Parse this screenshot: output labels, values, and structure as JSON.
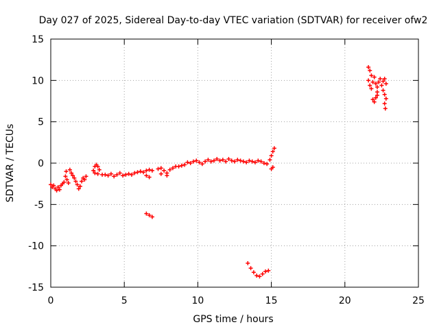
{
  "chart_data": {
    "type": "scatter",
    "title": "Day 027 of 2025, Sidereal Day-to-day VTEC variation (SDTVAR) for receiver ofw2",
    "xlabel": "GPS time / hours",
    "ylabel": "SDTVAR / TECUs",
    "xlim": [
      0,
      25
    ],
    "ylim": [
      -15,
      15
    ],
    "xticks": [
      0,
      5,
      10,
      15,
      20,
      25
    ],
    "yticks": [
      -15,
      -10,
      -5,
      0,
      5,
      10,
      15
    ],
    "grid": true,
    "marker": "+",
    "series": [
      {
        "name": "SDTVAR",
        "color": "#ff0000",
        "points": [
          [
            0.0,
            -2.6
          ],
          [
            0.1,
            -2.9
          ],
          [
            0.2,
            -2.7
          ],
          [
            0.3,
            -3.1
          ],
          [
            0.4,
            -3.3
          ],
          [
            0.5,
            -2.9
          ],
          [
            0.6,
            -3.2
          ],
          [
            0.7,
            -2.7
          ],
          [
            0.8,
            -2.5
          ],
          [
            0.9,
            -2.3
          ],
          [
            1.0,
            -1.6
          ],
          [
            1.05,
            -1.0
          ],
          [
            1.1,
            -2.0
          ],
          [
            1.2,
            -2.4
          ],
          [
            1.3,
            -0.8
          ],
          [
            1.4,
            -1.2
          ],
          [
            1.5,
            -1.5
          ],
          [
            1.6,
            -1.8
          ],
          [
            1.7,
            -2.2
          ],
          [
            1.8,
            -2.6
          ],
          [
            1.9,
            -3.1
          ],
          [
            2.0,
            -2.8
          ],
          [
            2.1,
            -2.2
          ],
          [
            2.2,
            -1.8
          ],
          [
            2.3,
            -2.0
          ],
          [
            2.4,
            -1.6
          ],
          [
            2.9,
            -0.9
          ],
          [
            3.0,
            -0.4
          ],
          [
            3.1,
            -0.2
          ],
          [
            3.2,
            -0.4
          ],
          [
            3.3,
            -0.8
          ],
          [
            3.0,
            -1.2
          ],
          [
            3.2,
            -1.3
          ],
          [
            3.5,
            -1.4
          ],
          [
            3.7,
            -1.4
          ],
          [
            3.9,
            -1.5
          ],
          [
            4.1,
            -1.3
          ],
          [
            4.3,
            -1.6
          ],
          [
            4.5,
            -1.4
          ],
          [
            4.7,
            -1.2
          ],
          [
            4.9,
            -1.5
          ],
          [
            5.1,
            -1.4
          ],
          [
            5.3,
            -1.3
          ],
          [
            5.5,
            -1.4
          ],
          [
            5.7,
            -1.2
          ],
          [
            5.9,
            -1.1
          ],
          [
            6.1,
            -1.0
          ],
          [
            6.3,
            -1.1
          ],
          [
            6.5,
            -0.9
          ],
          [
            6.7,
            -0.8
          ],
          [
            6.9,
            -0.9
          ],
          [
            6.5,
            -1.5
          ],
          [
            6.7,
            -1.7
          ],
          [
            7.3,
            -0.7
          ],
          [
            7.5,
            -0.6
          ],
          [
            7.7,
            -0.9
          ],
          [
            7.9,
            -1.2
          ],
          [
            8.1,
            -0.8
          ],
          [
            8.3,
            -0.6
          ],
          [
            8.5,
            -0.4
          ],
          [
            8.7,
            -0.4
          ],
          [
            8.9,
            -0.3
          ],
          [
            9.1,
            -0.2
          ],
          [
            7.5,
            -1.3
          ],
          [
            7.9,
            -1.5
          ],
          [
            9.3,
            0.1
          ],
          [
            9.5,
            0.0
          ],
          [
            9.7,
            0.2
          ],
          [
            9.9,
            0.3
          ],
          [
            10.1,
            0.1
          ],
          [
            10.3,
            -0.1
          ],
          [
            10.5,
            0.2
          ],
          [
            10.7,
            0.4
          ],
          [
            10.9,
            0.2
          ],
          [
            11.1,
            0.3
          ],
          [
            11.3,
            0.5
          ],
          [
            11.5,
            0.3
          ],
          [
            11.7,
            0.4
          ],
          [
            11.9,
            0.2
          ],
          [
            12.1,
            0.5
          ],
          [
            12.3,
            0.3
          ],
          [
            12.5,
            0.2
          ],
          [
            12.7,
            0.4
          ],
          [
            12.9,
            0.3
          ],
          [
            13.1,
            0.2
          ],
          [
            13.3,
            0.1
          ],
          [
            13.5,
            0.3
          ],
          [
            13.7,
            0.2
          ],
          [
            13.9,
            0.1
          ],
          [
            14.1,
            0.3
          ],
          [
            14.3,
            0.2
          ],
          [
            14.5,
            0.0
          ],
          [
            14.7,
            -0.1
          ],
          [
            14.9,
            0.4
          ],
          [
            15.0,
            0.9
          ],
          [
            15.1,
            1.4
          ],
          [
            15.2,
            1.8
          ],
          [
            15.1,
            -0.5
          ],
          [
            15.0,
            -0.7
          ],
          [
            6.5,
            -6.1
          ],
          [
            6.7,
            -6.3
          ],
          [
            6.9,
            -6.5
          ],
          [
            13.4,
            -12.1
          ],
          [
            13.6,
            -12.7
          ],
          [
            13.8,
            -13.2
          ],
          [
            14.0,
            -13.6
          ],
          [
            14.2,
            -13.7
          ],
          [
            14.4,
            -13.4
          ],
          [
            14.6,
            -13.1
          ],
          [
            14.8,
            -13.0
          ],
          [
            21.6,
            11.6
          ],
          [
            21.7,
            11.2
          ],
          [
            21.8,
            10.6
          ],
          [
            21.6,
            10.0
          ],
          [
            21.7,
            9.4
          ],
          [
            21.8,
            9.0
          ],
          [
            21.9,
            9.8
          ],
          [
            22.0,
            10.4
          ],
          [
            22.1,
            9.6
          ],
          [
            22.2,
            9.2
          ],
          [
            22.3,
            9.8
          ],
          [
            22.4,
            10.2
          ],
          [
            22.2,
            8.6
          ],
          [
            21.9,
            7.7
          ],
          [
            22.0,
            7.4
          ],
          [
            22.1,
            7.9
          ],
          [
            22.2,
            8.2
          ],
          [
            22.5,
            9.4
          ],
          [
            22.6,
            9.9
          ],
          [
            22.7,
            10.2
          ],
          [
            22.8,
            9.6
          ],
          [
            22.6,
            8.8
          ],
          [
            22.7,
            8.3
          ],
          [
            22.8,
            7.8
          ],
          [
            22.7,
            7.2
          ],
          [
            22.75,
            6.6
          ]
        ]
      }
    ]
  }
}
